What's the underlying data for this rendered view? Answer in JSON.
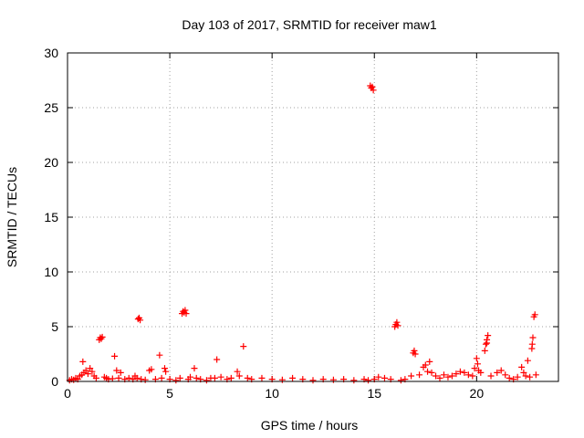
{
  "chart_data": {
    "type": "scatter",
    "title": "Day 103 of 2017, SRMTID for receiver maw1",
    "xlabel": "GPS time / hours",
    "ylabel": "SRMTID / TECUs",
    "xlim": [
      0,
      24
    ],
    "ylim": [
      0,
      30
    ],
    "xticks": [
      0,
      5,
      10,
      15,
      20
    ],
    "yticks": [
      0,
      5,
      10,
      15,
      20,
      25,
      30
    ],
    "grid": true,
    "marker": "+",
    "color": "#ff0000",
    "series": [
      {
        "name": "maw1",
        "points": [
          [
            0.1,
            0.1
          ],
          [
            0.2,
            0.2
          ],
          [
            0.3,
            0.15
          ],
          [
            0.4,
            0.3
          ],
          [
            0.5,
            0.2
          ],
          [
            0.6,
            0.5
          ],
          [
            0.7,
            0.6
          ],
          [
            0.75,
            1.8
          ],
          [
            0.8,
            0.8
          ],
          [
            0.9,
            1.0
          ],
          [
            1.0,
            0.7
          ],
          [
            1.1,
            1.2
          ],
          [
            1.2,
            0.9
          ],
          [
            1.3,
            0.5
          ],
          [
            1.4,
            0.3
          ],
          [
            1.55,
            3.8
          ],
          [
            1.6,
            4.0
          ],
          [
            1.65,
            3.9
          ],
          [
            1.7,
            4.05
          ],
          [
            1.8,
            0.4
          ],
          [
            1.9,
            0.3
          ],
          [
            2.0,
            0.2
          ],
          [
            2.2,
            0.25
          ],
          [
            2.3,
            2.3
          ],
          [
            2.4,
            1.0
          ],
          [
            2.5,
            0.3
          ],
          [
            2.6,
            0.8
          ],
          [
            2.8,
            0.2
          ],
          [
            3.0,
            0.3
          ],
          [
            3.2,
            0.2
          ],
          [
            3.3,
            0.5
          ],
          [
            3.4,
            0.3
          ],
          [
            3.45,
            5.7
          ],
          [
            3.5,
            5.8
          ],
          [
            3.55,
            5.6
          ],
          [
            3.6,
            0.2
          ],
          [
            3.8,
            0.15
          ],
          [
            4.0,
            1.0
          ],
          [
            4.1,
            1.1
          ],
          [
            4.3,
            0.2
          ],
          [
            4.5,
            2.4
          ],
          [
            4.6,
            0.3
          ],
          [
            4.75,
            1.2
          ],
          [
            4.8,
            0.9
          ],
          [
            5.0,
            0.2
          ],
          [
            5.3,
            0.1
          ],
          [
            5.5,
            0.3
          ],
          [
            5.6,
            6.2
          ],
          [
            5.65,
            6.4
          ],
          [
            5.7,
            6.3
          ],
          [
            5.75,
            6.5
          ],
          [
            5.8,
            6.2
          ],
          [
            5.9,
            0.2
          ],
          [
            6.0,
            0.4
          ],
          [
            6.2,
            1.2
          ],
          [
            6.3,
            0.3
          ],
          [
            6.5,
            0.2
          ],
          [
            6.8,
            0.1
          ],
          [
            7.0,
            0.3
          ],
          [
            7.2,
            0.3
          ],
          [
            7.3,
            2.0
          ],
          [
            7.5,
            0.4
          ],
          [
            7.8,
            0.2
          ],
          [
            8.0,
            0.3
          ],
          [
            8.3,
            0.9
          ],
          [
            8.4,
            0.5
          ],
          [
            8.6,
            3.2
          ],
          [
            8.8,
            0.3
          ],
          [
            9.0,
            0.2
          ],
          [
            9.5,
            0.3
          ],
          [
            10.0,
            0.2
          ],
          [
            10.5,
            0.15
          ],
          [
            11.0,
            0.3
          ],
          [
            11.5,
            0.2
          ],
          [
            12.0,
            0.1
          ],
          [
            12.5,
            0.2
          ],
          [
            13.0,
            0.15
          ],
          [
            13.5,
            0.2
          ],
          [
            14.0,
            0.1
          ],
          [
            14.5,
            0.2
          ],
          [
            14.7,
            0.1
          ],
          [
            14.8,
            27.0
          ],
          [
            14.85,
            26.8
          ],
          [
            14.9,
            26.9
          ],
          [
            14.95,
            26.6
          ],
          [
            15.0,
            0.2
          ],
          [
            15.2,
            0.4
          ],
          [
            15.5,
            0.3
          ],
          [
            15.8,
            0.2
          ],
          [
            16.0,
            5.0
          ],
          [
            16.05,
            5.2
          ],
          [
            16.1,
            5.4
          ],
          [
            16.15,
            5.1
          ],
          [
            16.3,
            0.1
          ],
          [
            16.5,
            0.2
          ],
          [
            16.8,
            0.5
          ],
          [
            16.9,
            2.6
          ],
          [
            16.95,
            2.8
          ],
          [
            17.0,
            2.5
          ],
          [
            17.2,
            0.6
          ],
          [
            17.4,
            1.3
          ],
          [
            17.5,
            1.5
          ],
          [
            17.6,
            0.9
          ],
          [
            17.7,
            1.8
          ],
          [
            17.8,
            0.8
          ],
          [
            18.0,
            0.5
          ],
          [
            18.2,
            0.3
          ],
          [
            18.4,
            0.6
          ],
          [
            18.6,
            0.4
          ],
          [
            18.8,
            0.5
          ],
          [
            19.0,
            0.7
          ],
          [
            19.2,
            0.9
          ],
          [
            19.4,
            0.8
          ],
          [
            19.6,
            0.6
          ],
          [
            19.8,
            0.5
          ],
          [
            19.9,
            1.2
          ],
          [
            20.0,
            2.1
          ],
          [
            20.05,
            1.6
          ],
          [
            20.1,
            1.0
          ],
          [
            20.2,
            0.8
          ],
          [
            20.4,
            2.8
          ],
          [
            20.45,
            3.4
          ],
          [
            20.5,
            3.8
          ],
          [
            20.55,
            4.2
          ],
          [
            20.5,
            3.5
          ],
          [
            20.7,
            0.5
          ],
          [
            21.0,
            0.8
          ],
          [
            21.2,
            1.0
          ],
          [
            21.4,
            0.6
          ],
          [
            21.6,
            0.3
          ],
          [
            21.8,
            0.2
          ],
          [
            22.0,
            0.4
          ],
          [
            22.2,
            1.3
          ],
          [
            22.3,
            0.8
          ],
          [
            22.4,
            0.5
          ],
          [
            22.5,
            1.9
          ],
          [
            22.6,
            0.4
          ],
          [
            22.7,
            3.0
          ],
          [
            22.72,
            3.4
          ],
          [
            22.75,
            4.0
          ],
          [
            22.8,
            5.9
          ],
          [
            22.85,
            6.1
          ],
          [
            22.9,
            0.6
          ]
        ]
      }
    ]
  }
}
